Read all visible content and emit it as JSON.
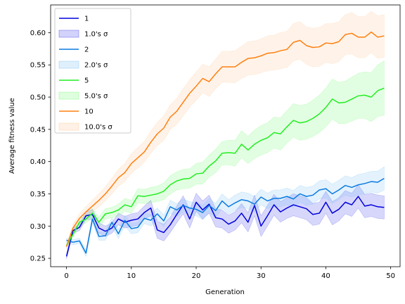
{
  "chart_data": {
    "type": "line",
    "title": "",
    "xlabel": "Generation",
    "ylabel": "Average fitness value",
    "xlim": [
      -2.45,
      51.45
    ],
    "ylim": [
      0.237,
      0.643
    ],
    "xticks": [
      0,
      10,
      20,
      30,
      40,
      50
    ],
    "yticks": [
      0.25,
      0.3,
      0.35,
      0.4,
      0.45,
      0.5,
      0.55,
      0.6
    ],
    "xtick_labels": [
      "0",
      "10",
      "20",
      "30",
      "40",
      "50"
    ],
    "ytick_labels": [
      "0.25",
      "0.30",
      "0.35",
      "0.40",
      "0.45",
      "0.50",
      "0.55",
      "0.60"
    ],
    "grid": false,
    "legend_position": "top-left",
    "x": [
      0,
      1,
      2,
      3,
      4,
      5,
      6,
      7,
      8,
      9,
      10,
      11,
      12,
      13,
      14,
      15,
      16,
      17,
      18,
      19,
      20,
      21,
      22,
      23,
      24,
      25,
      26,
      27,
      28,
      29,
      30,
      31,
      32,
      33,
      34,
      35,
      36,
      37,
      38,
      39,
      40,
      41,
      42,
      43,
      44,
      45,
      46,
      47,
      48,
      49
    ],
    "series": [
      {
        "name": "1",
        "band_name": "1.0's σ",
        "color": "#0000dd",
        "band_color": "#4a4aee",
        "values": [
          0.253,
          0.293,
          0.298,
          0.316,
          0.318,
          0.297,
          0.292,
          0.297,
          0.311,
          0.306,
          0.309,
          0.311,
          0.321,
          0.328,
          0.294,
          0.29,
          0.302,
          0.318,
          0.333,
          0.311,
          0.337,
          0.325,
          0.334,
          0.313,
          0.311,
          0.303,
          0.308,
          0.32,
          0.306,
          0.332,
          0.3,
          0.316,
          0.333,
          0.322,
          0.328,
          0.333,
          0.33,
          0.327,
          0.318,
          0.32,
          0.337,
          0.32,
          0.326,
          0.337,
          0.333,
          0.346,
          0.331,
          0.333,
          0.33,
          0.329
        ],
        "sigma": [
          0.004,
          0.004,
          0.005,
          0.006,
          0.008,
          0.008,
          0.008,
          0.008,
          0.009,
          0.009,
          0.01,
          0.01,
          0.01,
          0.012,
          0.013,
          0.013,
          0.012,
          0.013,
          0.014,
          0.014,
          0.014,
          0.014,
          0.014,
          0.014,
          0.014,
          0.014,
          0.014,
          0.015,
          0.015,
          0.016,
          0.016,
          0.016,
          0.016,
          0.016,
          0.016,
          0.017,
          0.017,
          0.017,
          0.017,
          0.017,
          0.017,
          0.018,
          0.018,
          0.018,
          0.018,
          0.018,
          0.018,
          0.018,
          0.018,
          0.018
        ]
      },
      {
        "name": "2",
        "band_name": "2.0's σ",
        "color": "#0a7ae0",
        "band_color": "#7fc2f5",
        "values": [
          0.278,
          0.275,
          0.277,
          0.258,
          0.311,
          0.284,
          0.285,
          0.306,
          0.288,
          0.309,
          0.296,
          0.298,
          0.312,
          0.309,
          0.319,
          0.308,
          0.33,
          0.325,
          0.332,
          0.328,
          0.326,
          0.321,
          0.332,
          0.324,
          0.339,
          0.33,
          0.336,
          0.341,
          0.339,
          0.334,
          0.345,
          0.339,
          0.343,
          0.343,
          0.346,
          0.342,
          0.35,
          0.346,
          0.348,
          0.356,
          0.358,
          0.35,
          0.356,
          0.363,
          0.36,
          0.364,
          0.366,
          0.369,
          0.368,
          0.374
        ],
        "sigma": [
          0.003,
          0.004,
          0.004,
          0.005,
          0.006,
          0.006,
          0.007,
          0.007,
          0.007,
          0.008,
          0.008,
          0.008,
          0.008,
          0.009,
          0.009,
          0.009,
          0.01,
          0.01,
          0.01,
          0.01,
          0.01,
          0.011,
          0.011,
          0.011,
          0.011,
          0.011,
          0.012,
          0.012,
          0.012,
          0.012,
          0.012,
          0.012,
          0.013,
          0.013,
          0.013,
          0.013,
          0.013,
          0.014,
          0.014,
          0.014,
          0.014,
          0.015,
          0.015,
          0.015,
          0.015,
          0.016,
          0.016,
          0.016,
          0.017,
          0.018
        ]
      },
      {
        "name": "5",
        "band_name": "5.0's σ",
        "color": "#22ee22",
        "band_color": "#7dfa7d",
        "values": [
          0.27,
          0.287,
          0.306,
          0.311,
          0.32,
          0.306,
          0.319,
          0.321,
          0.325,
          0.333,
          0.33,
          0.347,
          0.346,
          0.348,
          0.35,
          0.354,
          0.364,
          0.37,
          0.373,
          0.374,
          0.381,
          0.382,
          0.393,
          0.401,
          0.413,
          0.414,
          0.413,
          0.427,
          0.418,
          0.427,
          0.433,
          0.437,
          0.445,
          0.443,
          0.454,
          0.464,
          0.46,
          0.462,
          0.467,
          0.474,
          0.484,
          0.497,
          0.491,
          0.492,
          0.497,
          0.502,
          0.503,
          0.5,
          0.51,
          0.514
        ],
        "sigma": [
          0.003,
          0.004,
          0.005,
          0.006,
          0.007,
          0.008,
          0.008,
          0.008,
          0.009,
          0.01,
          0.01,
          0.011,
          0.011,
          0.012,
          0.012,
          0.013,
          0.014,
          0.014,
          0.015,
          0.015,
          0.016,
          0.017,
          0.017,
          0.018,
          0.018,
          0.019,
          0.02,
          0.021,
          0.021,
          0.022,
          0.023,
          0.023,
          0.024,
          0.025,
          0.025,
          0.026,
          0.027,
          0.027,
          0.028,
          0.029,
          0.03,
          0.031,
          0.032,
          0.033,
          0.034,
          0.035,
          0.036,
          0.038,
          0.04,
          0.042
        ]
      },
      {
        "name": "10",
        "band_name": "10.0's σ",
        "color": "#ff8010",
        "band_color": "#ffc89a",
        "values": [
          0.268,
          0.297,
          0.312,
          0.322,
          0.331,
          0.34,
          0.35,
          0.362,
          0.375,
          0.383,
          0.397,
          0.406,
          0.415,
          0.43,
          0.443,
          0.452,
          0.469,
          0.478,
          0.492,
          0.506,
          0.517,
          0.529,
          0.524,
          0.536,
          0.547,
          0.547,
          0.547,
          0.554,
          0.56,
          0.561,
          0.564,
          0.568,
          0.569,
          0.572,
          0.574,
          0.585,
          0.588,
          0.58,
          0.577,
          0.578,
          0.584,
          0.583,
          0.586,
          0.597,
          0.599,
          0.593,
          0.593,
          0.601,
          0.593,
          0.595
        ],
        "sigma": [
          0.004,
          0.006,
          0.007,
          0.008,
          0.009,
          0.01,
          0.011,
          0.012,
          0.013,
          0.014,
          0.015,
          0.016,
          0.016,
          0.017,
          0.018,
          0.019,
          0.019,
          0.02,
          0.021,
          0.021,
          0.022,
          0.022,
          0.023,
          0.023,
          0.024,
          0.024,
          0.025,
          0.025,
          0.026,
          0.026,
          0.026,
          0.027,
          0.027,
          0.028,
          0.028,
          0.029,
          0.029,
          0.029,
          0.03,
          0.03,
          0.03,
          0.031,
          0.031,
          0.031,
          0.032,
          0.032,
          0.032,
          0.032,
          0.033,
          0.033
        ]
      }
    ]
  }
}
